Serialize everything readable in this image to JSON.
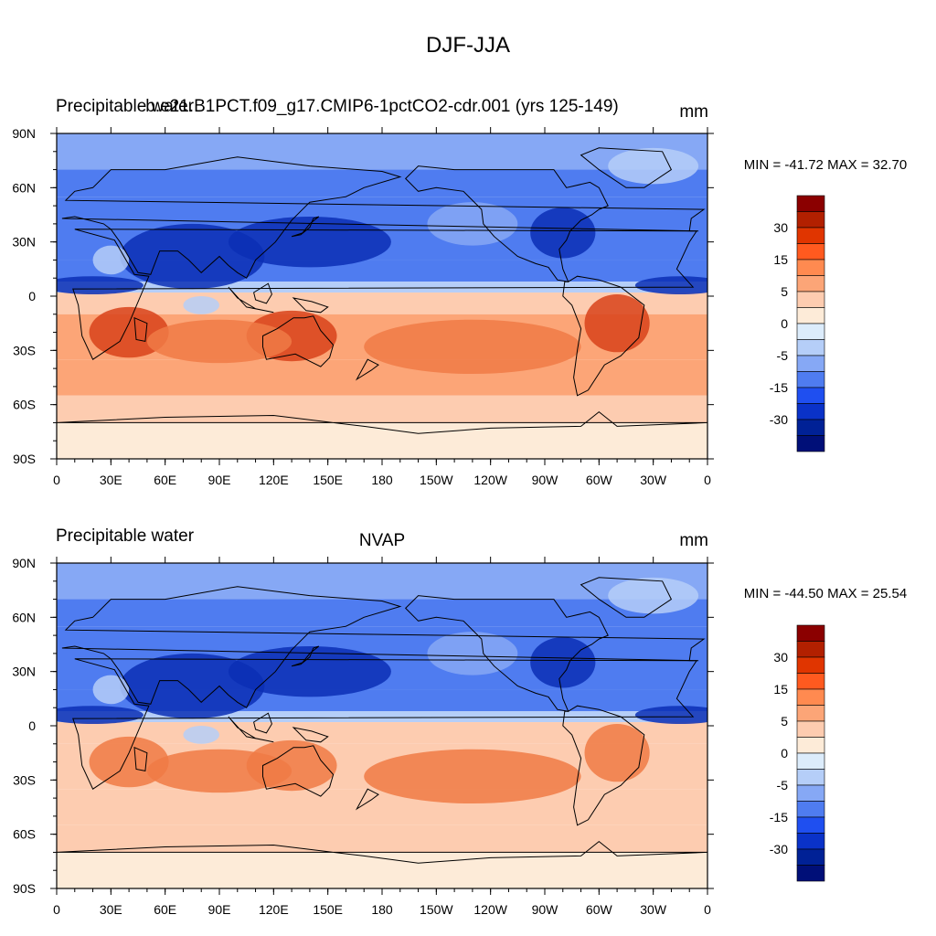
{
  "figure_title": "DJF-JJA",
  "chart_data": [
    {
      "type": "heatmap",
      "left_title": "Precipitable water",
      "center_title": "b.e21.B1PCT.f09_g17.CMIP6-1pctCO2-cdr.001 (yrs 125-149)",
      "units": "mm",
      "stats": "MIN = -41.72 MAX =  32.70",
      "min": -41.72,
      "max": 32.7,
      "x_ticks": [
        "0",
        "30E",
        "60E",
        "90E",
        "120E",
        "150E",
        "180",
        "150W",
        "120W",
        "90W",
        "60W",
        "30W",
        "0"
      ],
      "y_ticks": [
        "90N",
        "60N",
        "30N",
        "0",
        "30S",
        "60S",
        "90S"
      ],
      "xlim": [
        0,
        360
      ],
      "ylim": [
        -90,
        90
      ],
      "legend_location": "right"
    },
    {
      "type": "heatmap",
      "left_title": "Precipitable water",
      "center_title": "NVAP",
      "units": "mm",
      "stats": "MIN = -44.50 MAX =  25.54",
      "min": -44.5,
      "max": 25.54,
      "x_ticks": [
        "0",
        "30E",
        "60E",
        "90E",
        "120E",
        "150E",
        "180",
        "150W",
        "120W",
        "90W",
        "60W",
        "30W",
        "0"
      ],
      "y_ticks": [
        "90N",
        "60N",
        "30N",
        "0",
        "30S",
        "60S",
        "90S"
      ],
      "xlim": [
        0,
        360
      ],
      "ylim": [
        -90,
        90
      ],
      "legend_location": "right"
    }
  ],
  "colorbar": {
    "labels": [
      "30",
      "15",
      "5",
      "0",
      "-5",
      "-15",
      "-30"
    ],
    "colors": [
      "#8b0000",
      "#b22000",
      "#e03500",
      "#ff5a1f",
      "#ff8a50",
      "#fca577",
      "#fdccb0",
      "#fdebd8",
      "#dcecfb",
      "#b5cef8",
      "#86a8f5",
      "#4f7cf0",
      "#1f4ff0",
      "#0a32c8",
      "#002196",
      "#000f78"
    ]
  },
  "colors": {
    "neg_deep": "#0a2fb5",
    "neg_mid": "#4f7cf0",
    "neg_light": "#86a8f5",
    "neg_pale": "#b5cef8",
    "pos_pale": "#fdebd8",
    "pos_light": "#fdccb0",
    "pos_mid": "#fca577",
    "pos_strong": "#f07a45",
    "pos_deep": "#d8421a",
    "coast": "#000000"
  }
}
